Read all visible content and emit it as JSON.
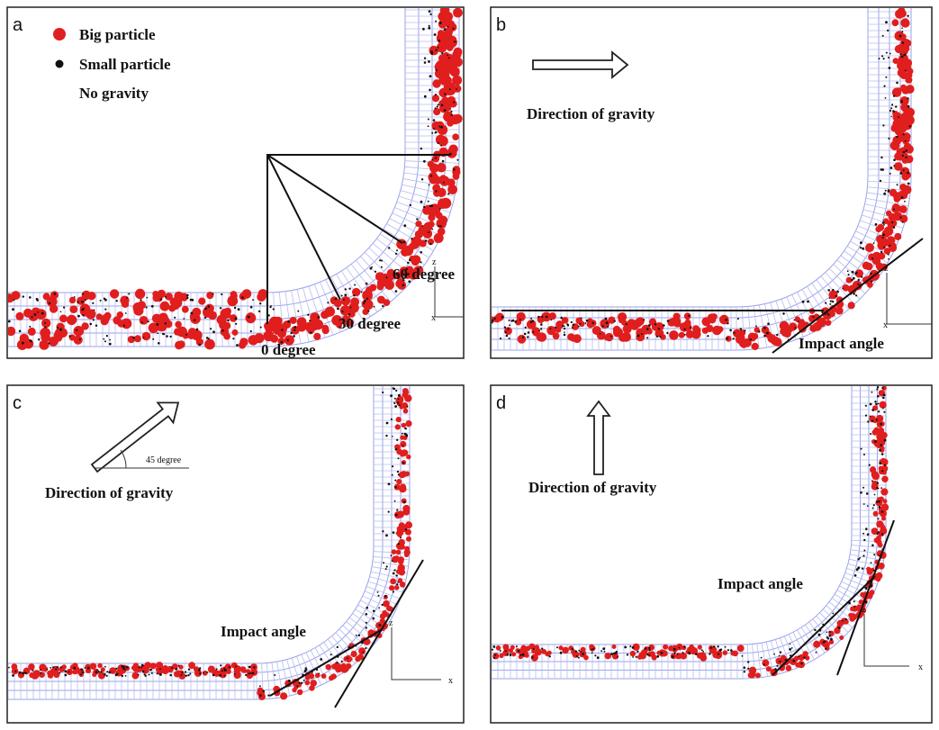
{
  "panels": [
    {
      "label": "a",
      "legend": [
        "Big particle",
        "Small particle"
      ],
      "note": "No gravity",
      "angles": [
        "60 degree",
        "30 degree",
        "0 degree"
      ],
      "axes": [
        "z",
        "x"
      ]
    },
    {
      "label": "b",
      "gravity": "Direction of gravity",
      "impact": "Impact angle",
      "axes": [
        "z",
        "x"
      ]
    },
    {
      "label": "c",
      "gravity": "Direction of gravity",
      "gravity_angle": "45 degree",
      "impact": "Impact angle",
      "axes": [
        "z",
        "x"
      ]
    },
    {
      "label": "d",
      "gravity": "Direction of gravity",
      "impact": "Impact angle",
      "axes": [
        "z",
        "x"
      ]
    }
  ]
}
